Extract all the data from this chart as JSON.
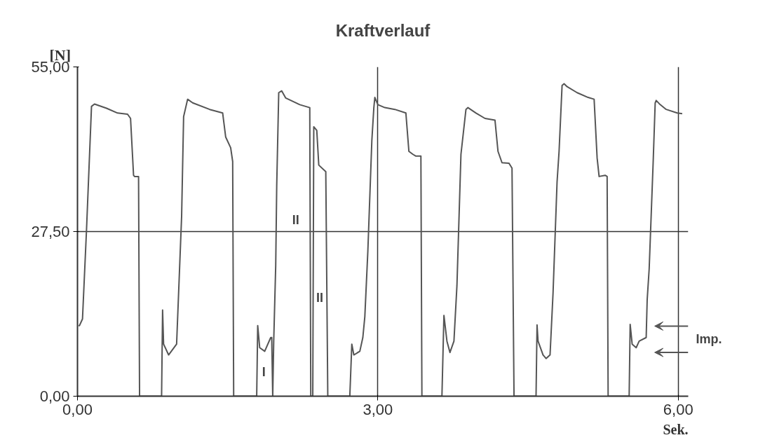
{
  "chart_data": {
    "type": "line",
    "title": "Kraftverlauf",
    "xlabel": "Sek.",
    "ylabel": "[N]",
    "xlim": [
      0,
      6.1
    ],
    "ylim": [
      0,
      55
    ],
    "xticks": [
      {
        "value": 0,
        "label": "0,00"
      },
      {
        "value": 3,
        "label": "3,00"
      },
      {
        "value": 6,
        "label": "6,00"
      }
    ],
    "yticks": [
      {
        "value": 0,
        "label": "0,00"
      },
      {
        "value": 27.5,
        "label": "27,50"
      },
      {
        "value": 55,
        "label": "55,00"
      }
    ],
    "grid": true,
    "marker": "none",
    "line_style": "solid",
    "annotations": [
      "I",
      {
        "text": "II",
        "x": 2.18,
        "y": 29.4
      },
      {
        "text": "II",
        "x": 2.42,
        "y": 16.4
      },
      "Imp."
    ],
    "series": [
      {
        "color": "#555555",
        "x": [
          0.01,
          0.02,
          0.05,
          0.09,
          0.14,
          0.17,
          0.29,
          0.4,
          0.5,
          0.53,
          0.56,
          0.57,
          0.61,
          0.62,
          0.84,
          0.85,
          0.86,
          0.91,
          0.99,
          1.04,
          1.06,
          1.1,
          1.15,
          1.32,
          1.45,
          1.48,
          1.53,
          1.55,
          1.56,
          1.79,
          1.8,
          1.82,
          1.87,
          1.93,
          1.94,
          1.95,
          1.96,
          1.98,
          1.99,
          2.01,
          2.04,
          2.08,
          2.22,
          2.32,
          2.33,
          2.35,
          2.36,
          2.39,
          2.41,
          2.48,
          2.5,
          2.72,
          2.74,
          2.76,
          2.82,
          2.85,
          2.87,
          2.9,
          2.94,
          2.96,
          2.97,
          3.0,
          3.07,
          3.17,
          3.28,
          3.31,
          3.35,
          3.38,
          3.43,
          3.44,
          3.64,
          3.66,
          3.69,
          3.72,
          3.76,
          3.79,
          3.83,
          3.88,
          3.9,
          3.98,
          4.07,
          4.17,
          4.2,
          4.24,
          4.31,
          4.34,
          4.36,
          4.58,
          4.59,
          4.6,
          4.65,
          4.68,
          4.72,
          4.75,
          4.79,
          4.81,
          4.84,
          4.86,
          4.89,
          4.99,
          5.1,
          5.16,
          5.19,
          5.21,
          5.27,
          5.29,
          5.3,
          5.49,
          5.51,
          5.52,
          5.54,
          5.58,
          5.61,
          5.68,
          5.69,
          5.71,
          5.75,
          5.77,
          5.78,
          5.82,
          5.88,
          5.99,
          6.04
        ],
        "values": [
          11.8,
          11.8,
          12.9,
          27.7,
          48.4,
          48.8,
          48.1,
          47.3,
          47.1,
          46.4,
          36.9,
          36.7,
          36.7,
          0,
          0,
          14.4,
          8.7,
          6.9,
          8.7,
          30.0,
          46.7,
          49.6,
          49.0,
          47.9,
          47.3,
          43.3,
          41.5,
          39.2,
          0,
          0,
          11.8,
          8.1,
          7.5,
          9.8,
          9.8,
          0,
          9.2,
          21.9,
          35.2,
          50.7,
          51.0,
          49.8,
          48.7,
          48.2,
          0,
          0,
          45.0,
          44.4,
          38.6,
          37.5,
          0,
          0,
          8.7,
          6.9,
          7.5,
          9.8,
          13.3,
          24.2,
          42.7,
          48.2,
          49.9,
          48.7,
          48.2,
          47.9,
          47.3,
          40.9,
          40.4,
          40.1,
          40.1,
          0,
          0,
          13.5,
          9.2,
          7.3,
          9.2,
          18.5,
          40.4,
          47.9,
          48.2,
          47.3,
          46.4,
          46.1,
          40.9,
          39.0,
          38.9,
          38.1,
          0,
          0,
          11.9,
          9.2,
          6.9,
          6.3,
          6.9,
          17.3,
          35.8,
          40.9,
          51.9,
          52.2,
          51.7,
          50.7,
          49.9,
          49.6,
          39.8,
          36.7,
          36.9,
          36.7,
          0,
          0,
          0,
          12.0,
          8.7,
          8.1,
          9.2,
          9.8,
          16.1,
          21.3,
          39.2,
          49.0,
          49.4,
          48.7,
          47.9,
          47.3,
          47.2
        ]
      }
    ]
  }
}
